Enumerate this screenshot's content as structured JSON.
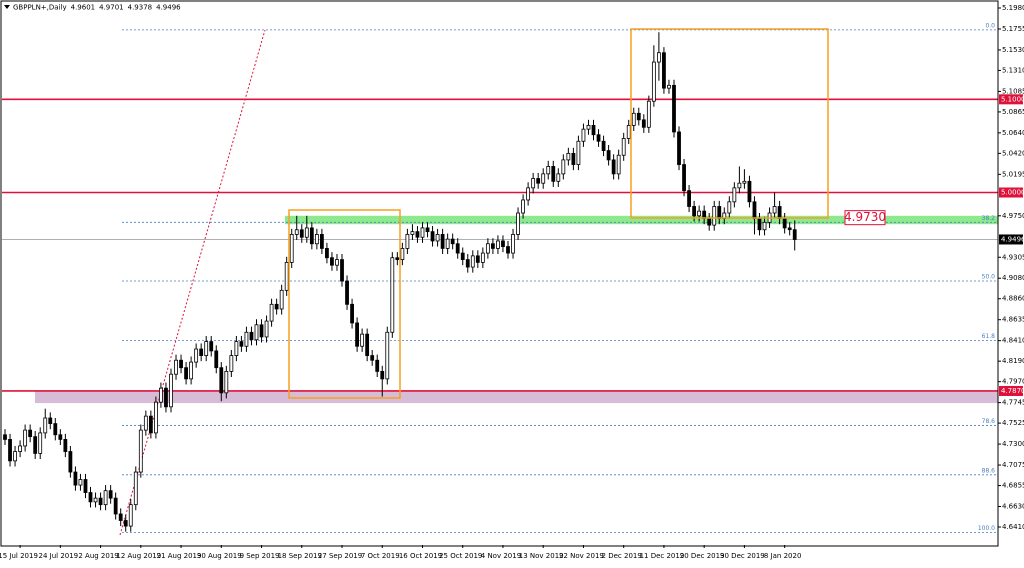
{
  "chart_data": {
    "type": "candlestick",
    "title": "GBPPLN+,Daily",
    "header_values": [
      4.9601,
      4.9701,
      4.9378,
      4.9496
    ],
    "up_color": "#ffffff",
    "down_color": "#000000",
    "categories": [
      null,
      null,
      null,
      "15 Jul 2019",
      null,
      null,
      null,
      null,
      null,
      null,
      null,
      "24 Jul 2019",
      null,
      null,
      null,
      null,
      null,
      null,
      null,
      "2 Aug 2019",
      null,
      null,
      null,
      null,
      null,
      null,
      null,
      "12 Aug 2019",
      null,
      null,
      null,
      null,
      null,
      null,
      null,
      "21 Aug 2019",
      null,
      null,
      null,
      null,
      null,
      null,
      null,
      "30 Aug 2019",
      null,
      null,
      null,
      null,
      null,
      null,
      null,
      "9 Sep 2019",
      null,
      null,
      null,
      null,
      null,
      null,
      null,
      "18 Sep 2019",
      null,
      null,
      null,
      null,
      null,
      null,
      null,
      "27 Sep 2019",
      null,
      null,
      null,
      null,
      null,
      null,
      null,
      "7 Oct 2019",
      null,
      null,
      null,
      null,
      null,
      null,
      null,
      "16 Oct 2019",
      null,
      null,
      null,
      null,
      null,
      null,
      null,
      "25 Oct 2019",
      null,
      null,
      null,
      null,
      null,
      null,
      null,
      "4 Nov 2019",
      null,
      null,
      null,
      null,
      null,
      null,
      null,
      "13 Nov 2019",
      null,
      null,
      null,
      null,
      null,
      null,
      null,
      "22 Nov 2019",
      null,
      null,
      null,
      null,
      null,
      null,
      null,
      "2 Dec 2019",
      null,
      null,
      null,
      null,
      null,
      null,
      null,
      "11 Dec 2019",
      null,
      null,
      null,
      null,
      null,
      null,
      null,
      "20 Dec 2019",
      null,
      null,
      null,
      null,
      null,
      null,
      null,
      "30 Dec 2019",
      null,
      null,
      null,
      null,
      null,
      null,
      null,
      "8 Jan 2020",
      null,
      null
    ],
    "open": [
      4.74,
      4.735,
      4.712,
      4.722,
      4.728,
      4.745,
      4.738,
      4.72,
      4.742,
      4.758,
      4.752,
      4.74,
      4.735,
      4.722,
      4.7,
      4.686,
      4.692,
      4.678,
      4.668,
      4.672,
      4.665,
      4.68,
      4.672,
      4.655,
      4.648,
      4.642,
      4.665,
      4.7,
      4.745,
      4.76,
      4.742,
      4.775,
      4.79,
      4.77,
      4.805,
      4.82,
      4.812,
      4.8,
      4.818,
      4.832,
      4.825,
      4.84,
      4.83,
      4.812,
      4.785,
      4.808,
      4.825,
      4.84,
      4.835,
      4.85,
      4.842,
      4.858,
      4.845,
      4.862,
      4.88,
      4.875,
      4.895,
      4.925,
      4.955,
      4.96,
      4.952,
      4.962,
      4.945,
      4.955,
      4.94,
      4.93,
      4.922,
      4.928,
      4.905,
      4.88,
      4.86,
      4.835,
      4.848,
      4.825,
      4.82,
      4.808,
      4.8,
      4.85,
      4.93,
      4.928,
      4.94,
      4.955,
      4.958,
      4.952,
      4.962,
      4.958,
      4.948,
      4.955,
      4.94,
      4.95,
      4.945,
      4.935,
      4.928,
      4.92,
      4.932,
      4.925,
      4.935,
      4.945,
      4.94,
      4.948,
      4.942,
      4.935,
      4.955,
      4.978,
      4.992,
      5.005,
      5.015,
      5.01,
      5.02,
      5.028,
      5.012,
      5.02,
      5.035,
      5.042,
      5.03,
      5.055,
      5.068,
      5.072,
      5.062,
      5.055,
      5.045,
      5.035,
      5.02,
      5.04,
      5.058,
      5.072,
      5.085,
      5.078,
      5.07,
      5.098,
      5.14,
      5.15,
      5.112,
      5.115,
      5.065,
      5.03,
      5.002,
      4.985,
      4.975,
      4.98,
      4.972,
      4.965,
      4.985,
      4.972,
      4.978,
      4.99,
      5.005,
      5.01,
      5.012,
      4.99,
      4.972,
      4.96,
      4.968,
      4.978,
      4.985,
      4.972,
      4.962,
      4.9601
    ],
    "high": [
      4.746,
      4.741,
      4.728,
      4.734,
      4.751,
      4.751,
      4.744,
      4.748,
      4.768,
      4.764,
      4.758,
      4.746,
      4.741,
      4.728,
      4.706,
      4.698,
      4.698,
      4.684,
      4.678,
      4.678,
      4.686,
      4.686,
      4.678,
      4.661,
      4.654,
      4.671,
      4.706,
      4.751,
      4.766,
      4.766,
      4.781,
      4.796,
      4.796,
      4.811,
      4.826,
      4.826,
      4.818,
      4.824,
      4.838,
      4.838,
      4.846,
      4.846,
      4.836,
      4.818,
      4.814,
      4.831,
      4.846,
      4.846,
      4.856,
      4.856,
      4.864,
      4.864,
      4.868,
      4.886,
      4.886,
      4.901,
      4.931,
      4.961,
      4.975,
      4.966,
      4.975,
      4.968,
      4.961,
      4.961,
      4.946,
      4.936,
      4.934,
      4.934,
      4.911,
      4.886,
      4.866,
      4.854,
      4.854,
      4.831,
      4.826,
      4.814,
      4.856,
      4.936,
      4.936,
      4.946,
      4.961,
      4.966,
      4.964,
      4.968,
      4.968,
      4.964,
      4.961,
      4.961,
      4.956,
      4.956,
      4.951,
      4.941,
      4.934,
      4.938,
      4.938,
      4.941,
      4.951,
      4.951,
      4.954,
      4.954,
      4.948,
      4.961,
      4.984,
      4.998,
      5.011,
      5.021,
      5.021,
      5.026,
      5.034,
      5.034,
      5.026,
      5.041,
      5.048,
      5.048,
      5.061,
      5.074,
      5.078,
      5.078,
      5.068,
      5.061,
      5.051,
      5.041,
      5.046,
      5.064,
      5.078,
      5.091,
      5.091,
      5.084,
      5.104,
      5.158,
      5.172,
      5.156,
      5.121,
      5.121,
      5.071,
      5.036,
      5.008,
      4.991,
      4.986,
      4.986,
      4.978,
      4.991,
      4.991,
      4.984,
      4.996,
      5.011,
      5.028,
      5.025,
      5.018,
      4.996,
      4.978,
      4.974,
      4.984,
      5.0,
      4.991,
      4.978,
      4.968,
      4.9701
    ],
    "low": [
      4.729,
      4.706,
      4.706,
      4.716,
      4.722,
      4.732,
      4.714,
      4.714,
      4.736,
      4.746,
      4.734,
      4.729,
      4.716,
      4.694,
      4.68,
      4.68,
      4.672,
      4.662,
      4.662,
      4.659,
      4.659,
      4.666,
      4.649,
      4.642,
      4.636,
      4.636,
      4.659,
      4.694,
      4.739,
      4.736,
      4.736,
      4.769,
      4.764,
      4.764,
      4.799,
      4.806,
      4.794,
      4.794,
      4.812,
      4.819,
      4.819,
      4.824,
      4.806,
      4.776,
      4.779,
      4.802,
      4.819,
      4.829,
      4.829,
      4.836,
      4.836,
      4.839,
      4.839,
      4.856,
      4.869,
      4.869,
      4.889,
      4.919,
      4.949,
      4.946,
      4.946,
      4.939,
      4.939,
      4.934,
      4.924,
      4.916,
      4.916,
      4.899,
      4.874,
      4.854,
      4.829,
      4.829,
      4.819,
      4.814,
      4.802,
      4.781,
      4.794,
      4.844,
      4.922,
      4.922,
      4.934,
      4.949,
      4.946,
      4.946,
      4.952,
      4.942,
      4.942,
      4.934,
      4.934,
      4.939,
      4.929,
      4.922,
      4.914,
      4.914,
      4.919,
      4.919,
      4.929,
      4.934,
      4.934,
      4.936,
      4.929,
      4.929,
      4.949,
      4.972,
      4.986,
      4.999,
      5.004,
      5.004,
      5.014,
      5.006,
      5.006,
      5.014,
      5.029,
      5.024,
      5.024,
      5.049,
      5.062,
      5.056,
      5.049,
      5.039,
      5.029,
      5.014,
      5.014,
      5.034,
      5.052,
      5.066,
      5.072,
      5.064,
      5.064,
      5.092,
      5.12,
      5.106,
      5.106,
      5.059,
      5.024,
      4.996,
      4.979,
      4.969,
      4.969,
      4.966,
      4.959,
      4.959,
      4.966,
      4.966,
      4.972,
      4.984,
      4.999,
      5.004,
      4.984,
      4.955,
      4.954,
      4.954,
      4.962,
      4.972,
      4.966,
      4.956,
      4.954,
      4.9378
    ],
    "close": [
      4.735,
      4.712,
      4.722,
      4.728,
      4.745,
      4.738,
      4.72,
      4.742,
      4.758,
      4.752,
      4.74,
      4.735,
      4.722,
      4.7,
      4.686,
      4.692,
      4.678,
      4.668,
      4.672,
      4.665,
      4.68,
      4.672,
      4.655,
      4.648,
      4.642,
      4.665,
      4.7,
      4.745,
      4.76,
      4.742,
      4.775,
      4.79,
      4.77,
      4.805,
      4.82,
      4.812,
      4.8,
      4.818,
      4.832,
      4.825,
      4.84,
      4.83,
      4.812,
      4.785,
      4.808,
      4.825,
      4.84,
      4.835,
      4.85,
      4.842,
      4.858,
      4.845,
      4.862,
      4.88,
      4.875,
      4.895,
      4.925,
      4.955,
      4.96,
      4.952,
      4.962,
      4.945,
      4.955,
      4.94,
      4.93,
      4.922,
      4.928,
      4.905,
      4.88,
      4.86,
      4.835,
      4.848,
      4.825,
      4.82,
      4.808,
      4.8,
      4.85,
      4.93,
      4.928,
      4.94,
      4.955,
      4.958,
      4.952,
      4.962,
      4.958,
      4.948,
      4.955,
      4.94,
      4.95,
      4.945,
      4.935,
      4.928,
      4.92,
      4.932,
      4.925,
      4.935,
      4.945,
      4.94,
      4.948,
      4.942,
      4.935,
      4.955,
      4.978,
      4.992,
      5.005,
      5.015,
      5.01,
      5.02,
      5.028,
      5.012,
      5.02,
      5.035,
      5.042,
      5.03,
      5.055,
      5.068,
      5.072,
      5.062,
      5.055,
      5.045,
      5.035,
      5.02,
      5.04,
      5.058,
      5.072,
      5.085,
      5.078,
      5.07,
      5.098,
      5.14,
      5.15,
      5.112,
      5.115,
      5.065,
      5.03,
      5.002,
      4.985,
      4.975,
      4.98,
      4.972,
      4.965,
      4.985,
      4.972,
      4.978,
      4.99,
      5.005,
      5.01,
      5.012,
      4.99,
      4.972,
      4.96,
      4.968,
      4.978,
      4.985,
      4.972,
      4.962,
      4.9601,
      4.9496
    ],
    "ylim": [
      4.6217,
      5.2066
    ],
    "yticks": [
      {
        "value": 5.198,
        "label": "5.1980"
      },
      {
        "value": 5.1755,
        "label": "5.1755"
      },
      {
        "value": 5.153,
        "label": "5.1530"
      },
      {
        "value": 5.131,
        "label": "5.1310"
      },
      {
        "value": 5.1085,
        "label": "5.1085"
      },
      {
        "value": 5.0865,
        "label": "5.0865"
      },
      {
        "value": 5.064,
        "label": "5.0640"
      },
      {
        "value": 5.042,
        "label": "5.0420"
      },
      {
        "value": 5.0195,
        "label": "5.0195"
      },
      {
        "value": 4.975,
        "label": "4.9750"
      },
      {
        "value": 4.9305,
        "label": "4.9305"
      },
      {
        "value": 4.908,
        "label": "4.9080"
      },
      {
        "value": 4.886,
        "label": "4.8860"
      },
      {
        "value": 4.8635,
        "label": "4.8635"
      },
      {
        "value": 4.841,
        "label": "4.8410"
      },
      {
        "value": 4.819,
        "label": "4.8190"
      },
      {
        "value": 4.797,
        "label": "4.7970"
      },
      {
        "value": 4.7745,
        "label": "4.7745"
      },
      {
        "value": 4.7525,
        "label": "4.7525"
      },
      {
        "value": 4.73,
        "label": "4.7300"
      },
      {
        "value": 4.7075,
        "label": "4.7075"
      },
      {
        "value": 4.6855,
        "label": "4.6855"
      },
      {
        "value": 4.663,
        "label": "4.6630"
      },
      {
        "value": 4.641,
        "label": "4.6410"
      }
    ],
    "grid": false,
    "levels": [
      {
        "value": 5.1,
        "label": "5.1000",
        "color": "#e0103a"
      },
      {
        "value": 5.0,
        "label": "5.0000",
        "color": "#e0103a"
      },
      {
        "value": 4.787,
        "label": "4.7870",
        "color": "#e0103a"
      }
    ],
    "current_price": 4.9496,
    "zones": [
      {
        "low": 4.966,
        "high": 4.975,
        "color": "#8ee88e"
      },
      {
        "low": 4.774,
        "high": 4.787,
        "color": "#d6bcd6"
      }
    ],
    "annotation": {
      "value": 4.973,
      "label": "4.9730",
      "color": "#e0103a"
    },
    "fibonacci": {
      "color": "#4a7fc0",
      "levels": [
        {
          "value": 5.1745,
          "label": "0.0"
        },
        {
          "value": 4.968,
          "label": "38.2"
        },
        {
          "value": 4.905,
          "label": "50.0"
        },
        {
          "value": 4.841,
          "label": "61.8"
        },
        {
          "value": 4.75,
          "label": "78.6"
        },
        {
          "value": 4.697,
          "label": "88.6"
        },
        {
          "value": 4.635,
          "label": "100.0"
        }
      ]
    }
  }
}
